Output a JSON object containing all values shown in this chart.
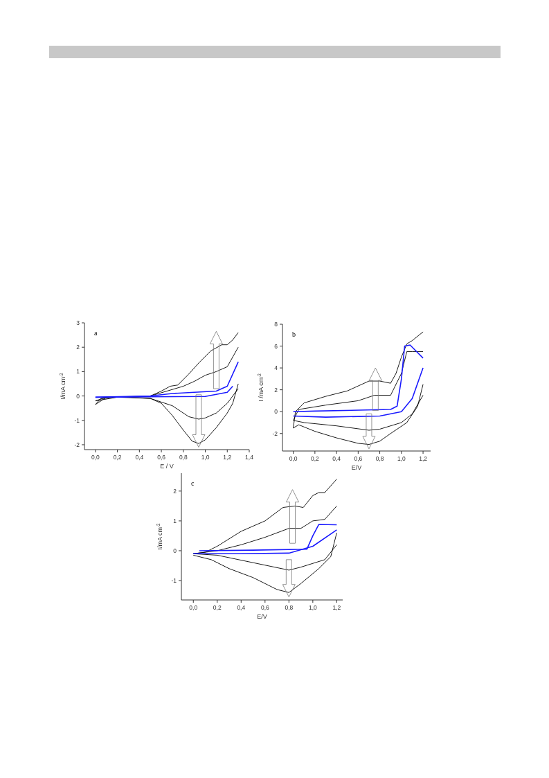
{
  "chart_data": [
    {
      "type": "line",
      "xlabel": "E / V",
      "ylabel": "I/mA cm$^{-2}$",
      "annotations": [
        "a"
      ],
      "xlim": [
        -0.1,
        1.4
      ],
      "ylim": [
        -2.2,
        3
      ],
      "xticks": [
        {
          "value": 0,
          "label": "0,0"
        },
        {
          "value": 0.2,
          "label": "0,2"
        },
        {
          "value": 0.4,
          "label": "0,4"
        },
        {
          "value": 0.6,
          "label": "0,6"
        },
        {
          "value": 0.8,
          "label": "0,8"
        },
        {
          "value": 1.0,
          "label": "1,0"
        },
        {
          "value": 1.2,
          "label": "1,2"
        },
        {
          "value": 1.4,
          "label": "1,4"
        }
      ],
      "yticks": [
        -2,
        -1,
        0,
        1,
        2,
        3
      ],
      "series": [
        {
          "color": "#000000",
          "x": [
            0,
            0.05,
            0.2,
            0.5,
            0.6,
            0.68,
            0.75,
            0.85,
            0.95,
            1.05,
            1.15,
            1.2,
            1.25,
            1.3
          ],
          "values": [
            -0.35,
            -0.1,
            -0.05,
            0,
            0.2,
            0.4,
            0.45,
            0.9,
            1.4,
            1.85,
            2.1,
            2.1,
            2.3,
            2.6
          ]
        },
        {
          "color": "#000000",
          "x": [
            0,
            0.1,
            0.3,
            0.5,
            0.6,
            0.7,
            0.8,
            0.88,
            0.94,
            1.0,
            1.1,
            1.2,
            1.25,
            1.3
          ],
          "values": [
            -0.35,
            -0.05,
            -0.05,
            -0.1,
            -0.3,
            -0.8,
            -1.4,
            -1.85,
            -1.95,
            -1.8,
            -1.3,
            -0.7,
            -0.3,
            0.5
          ]
        },
        {
          "color": "#000000",
          "x": [
            0,
            0.1,
            0.5,
            0.65,
            0.8,
            0.9,
            1.0,
            1.1,
            1.2,
            1.3
          ],
          "values": [
            -0.2,
            -0.05,
            0,
            0.2,
            0.4,
            0.6,
            0.85,
            1.0,
            1.2,
            2.0
          ]
        },
        {
          "color": "#000000",
          "x": [
            0,
            0.2,
            0.5,
            0.7,
            0.85,
            0.94,
            1.0,
            1.1,
            1.2,
            1.3
          ],
          "values": [
            -0.2,
            -0.05,
            -0.1,
            -0.4,
            -0.85,
            -0.95,
            -0.9,
            -0.7,
            -0.3,
            0.3
          ]
        },
        {
          "color": "#1a1aff",
          "x": [
            0,
            0.5,
            0.7,
            0.9,
            1.1,
            1.2,
            1.3
          ],
          "values": [
            -0.05,
            0,
            0.1,
            0.15,
            0.2,
            0.4,
            1.4
          ]
        },
        {
          "color": "#1a1aff",
          "x": [
            0,
            0.5,
            1.0,
            1.2,
            1.25
          ],
          "values": [
            -0.05,
            -0.03,
            -0.02,
            0.15,
            0.4
          ]
        }
      ]
    },
    {
      "type": "line",
      "xlabel": "E/V",
      "ylabel": "I /mA cm$^{-2}$",
      "annotations": [
        "b"
      ],
      "xlim": [
        -0.1,
        1.27
      ],
      "ylim": [
        -3.6,
        8
      ],
      "xticks": [
        {
          "value": 0,
          "label": "0,0"
        },
        {
          "value": 0.2,
          "label": "0,2"
        },
        {
          "value": 0.4,
          "label": "0,4"
        },
        {
          "value": 0.6,
          "label": "0,6"
        },
        {
          "value": 0.8,
          "label": "0,8"
        },
        {
          "value": 1.0,
          "label": "1,0"
        },
        {
          "value": 1.2,
          "label": "1,2"
        }
      ],
      "yticks": [
        -2,
        0,
        2,
        4,
        6,
        8
      ],
      "series": [
        {
          "color": "#000000",
          "x": [
            0,
            0.02,
            0.1,
            0.3,
            0.5,
            0.7,
            0.8,
            0.9,
            0.95,
            1.0,
            1.05,
            1.1,
            1.2
          ],
          "values": [
            -1.5,
            0,
            0.8,
            1.4,
            1.9,
            2.8,
            2.8,
            2.6,
            3.5,
            5.0,
            6.2,
            6.5,
            7.3
          ]
        },
        {
          "color": "#000000",
          "x": [
            0,
            0.05,
            0.2,
            0.4,
            0.6,
            0.7,
            0.8,
            0.9,
            1.05,
            1.15,
            1.2
          ],
          "values": [
            -1.5,
            -1.2,
            -1.8,
            -2.4,
            -2.9,
            -3.0,
            -2.7,
            -2.0,
            -1.0,
            0.5,
            2.5
          ]
        },
        {
          "color": "#000000",
          "x": [
            0,
            0.05,
            0.3,
            0.6,
            0.75,
            0.9,
            1.0,
            1.05,
            1.1,
            1.2
          ],
          "values": [
            -0.8,
            0.2,
            0.6,
            1.0,
            1.5,
            1.5,
            3.5,
            5.5,
            5.5,
            5.5
          ]
        },
        {
          "color": "#000000",
          "x": [
            0,
            0.1,
            0.4,
            0.7,
            0.8,
            1.0,
            1.1,
            1.2
          ],
          "values": [
            -0.8,
            -1.0,
            -1.3,
            -1.7,
            -1.6,
            -1.0,
            -0.2,
            1.5
          ]
        },
        {
          "color": "#1a1aff",
          "x": [
            0,
            0.2,
            0.9,
            0.96,
            1.0,
            1.03,
            1.08,
            1.2
          ],
          "values": [
            0,
            0.05,
            0.2,
            0.5,
            3.0,
            6.0,
            6.1,
            4.9
          ]
        },
        {
          "color": "#1a1aff",
          "x": [
            0,
            0.3,
            0.8,
            1.0,
            1.1,
            1.2
          ],
          "values": [
            -0.4,
            -0.5,
            -0.4,
            0,
            1.2,
            4.0
          ]
        }
      ]
    },
    {
      "type": "line",
      "xlabel": "E/V",
      "ylabel": "I/mA cm$^{-2}$",
      "annotations": [
        "c"
      ],
      "xlim": [
        -0.1,
        1.25
      ],
      "ylim": [
        -1.65,
        2.6
      ],
      "xticks": [
        {
          "value": 0,
          "label": "0,0"
        },
        {
          "value": 0.2,
          "label": "0,2"
        },
        {
          "value": 0.4,
          "label": "0,4"
        },
        {
          "value": 0.6,
          "label": "0,6"
        },
        {
          "value": 0.8,
          "label": "0,8"
        },
        {
          "value": 1.0,
          "label": "1,0"
        },
        {
          "value": 1.2,
          "label": "1,2"
        }
      ],
      "yticks": [
        -1,
        0,
        1,
        2
      ],
      "series": [
        {
          "color": "#000000",
          "x": [
            0,
            0.1,
            0.2,
            0.4,
            0.6,
            0.75,
            0.85,
            0.92,
            1.0,
            1.05,
            1.1,
            1.2
          ],
          "values": [
            -0.1,
            -0.05,
            0.15,
            0.65,
            1.0,
            1.45,
            1.5,
            1.45,
            1.85,
            1.95,
            1.95,
            2.4
          ]
        },
        {
          "color": "#000000",
          "x": [
            0,
            0.15,
            0.3,
            0.5,
            0.7,
            0.8,
            0.9,
            1.05,
            1.15,
            1.2
          ],
          "values": [
            -0.15,
            -0.3,
            -0.6,
            -0.9,
            -1.3,
            -1.4,
            -1.1,
            -0.6,
            -0.2,
            0.6
          ]
        },
        {
          "color": "#000000",
          "x": [
            0,
            0.2,
            0.4,
            0.6,
            0.8,
            0.9,
            1.0,
            1.1,
            1.2
          ],
          "values": [
            -0.1,
            0,
            0.2,
            0.45,
            0.75,
            0.75,
            1.0,
            1.05,
            1.5
          ]
        },
        {
          "color": "#000000",
          "x": [
            0,
            0.2,
            0.5,
            0.8,
            0.9,
            1.1,
            1.2
          ],
          "values": [
            -0.1,
            -0.15,
            -0.4,
            -0.65,
            -0.55,
            -0.3,
            0.2
          ]
        },
        {
          "color": "#1a1aff",
          "x": [
            0.05,
            0.5,
            0.95,
            1.0,
            1.05,
            1.2
          ],
          "values": [
            0,
            0.02,
            0.05,
            0.5,
            0.88,
            0.87
          ]
        },
        {
          "color": "#1a1aff",
          "x": [
            0,
            0.4,
            0.8,
            1.0,
            1.2
          ],
          "values": [
            -0.1,
            -0.1,
            -0.08,
            0.15,
            0.7
          ]
        }
      ]
    }
  ]
}
